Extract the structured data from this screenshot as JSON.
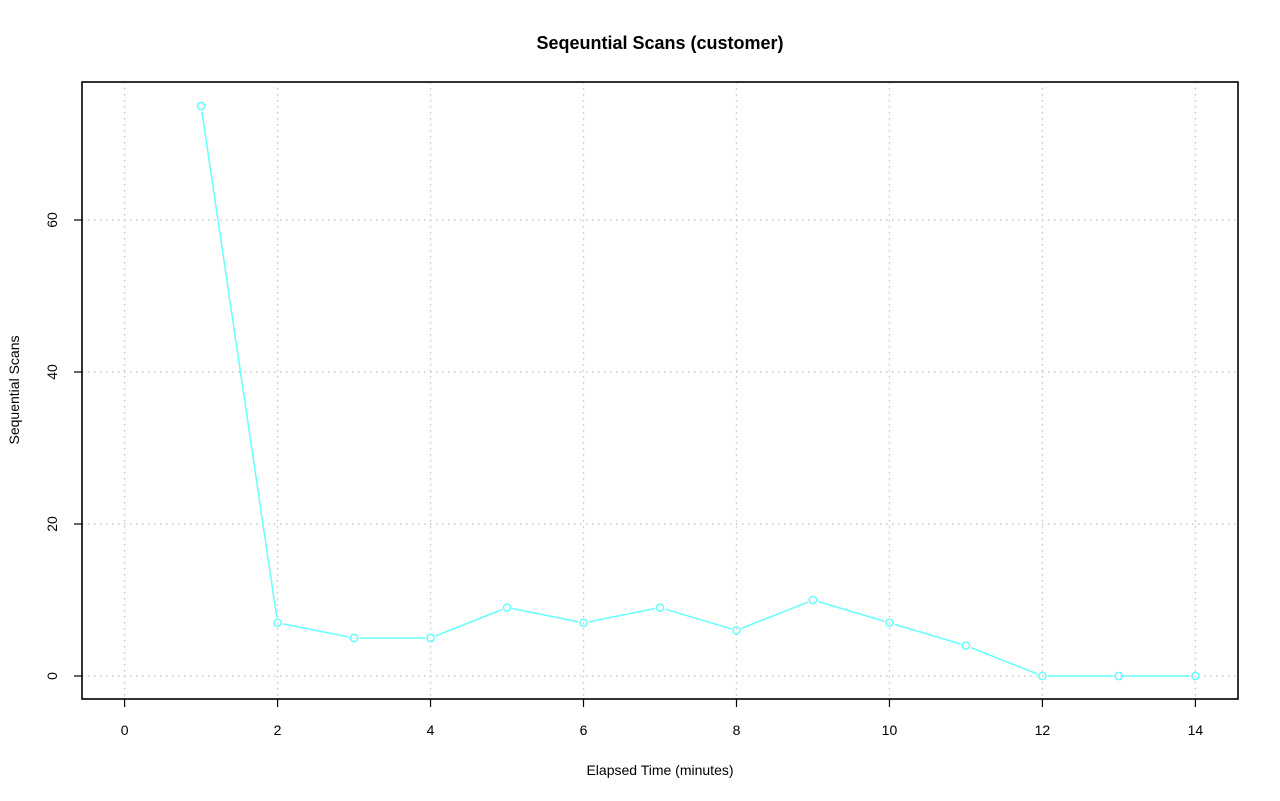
{
  "chart_data": {
    "type": "line",
    "title": "Seqeuntial Scans (customer)",
    "xlabel": "Elapsed Time (minutes)",
    "ylabel": "Sequential Scans",
    "xlim": [
      0,
      14
    ],
    "ylim": [
      0,
      75
    ],
    "xticks": [
      0,
      2,
      4,
      6,
      8,
      10,
      12,
      14
    ],
    "yticks": [
      0,
      20,
      40,
      60
    ],
    "grid": true,
    "legend": "none",
    "series": [
      {
        "color": "#66ffff",
        "marker": "open-circle",
        "x": [
          1,
          2,
          3,
          4,
          5,
          6,
          7,
          8,
          9,
          10,
          11,
          12,
          13,
          14
        ],
        "y": [
          75,
          7,
          5,
          5,
          9,
          7,
          9,
          6,
          10,
          7,
          4,
          0,
          0,
          0
        ]
      }
    ]
  }
}
